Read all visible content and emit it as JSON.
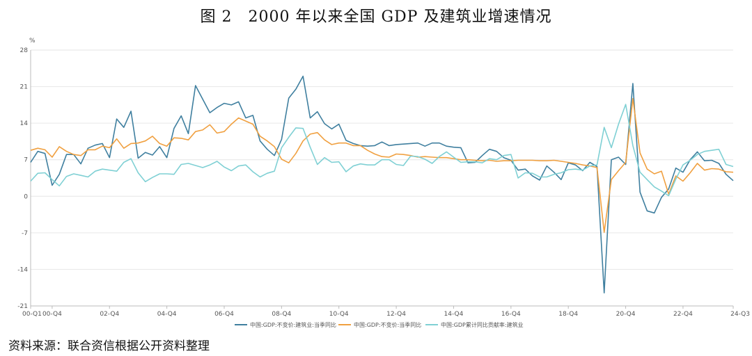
{
  "title": "图 2　2000 年以来全国 GDP 及建筑业增速情况",
  "source": "资料来源：联合资信根据公开资料整理",
  "chart_data": {
    "type": "line",
    "ylabel": "%",
    "ylim": [
      -21,
      28
    ],
    "yticks": [
      "28",
      "21",
      "14",
      "7",
      "0",
      "-7",
      "-14",
      "-21"
    ],
    "ytick_values": [
      28,
      21,
      14,
      7,
      0,
      -7,
      -14,
      -21
    ],
    "x_tick_labels": [
      "00-Q1",
      "00-Q4",
      "02-Q4",
      "04-Q4",
      "06-Q4",
      "08-Q4",
      "10-Q4",
      "12-Q4",
      "14-Q4",
      "16-Q4",
      "18-Q4",
      "20-Q4",
      "22-Q4",
      "24-Q3"
    ],
    "x_tick_indices": [
      0,
      3,
      11,
      19,
      27,
      35,
      43,
      51,
      59,
      67,
      75,
      83,
      91,
      98
    ],
    "grid": true,
    "legend_position": "bottom",
    "series": [
      {
        "name": "中国:GDP:不变价:建筑业:当季同比",
        "color": "#3f7f9f",
        "values": [
          6.5,
          8.6,
          8.2,
          2.1,
          4.2,
          8.0,
          8.0,
          6.2,
          9.2,
          9.8,
          10.1,
          7.4,
          14.8,
          13.2,
          16.3,
          7.3,
          8.4,
          7.9,
          9.5,
          7.4,
          13.0,
          15.4,
          12.0,
          21.2,
          18.6,
          16.0,
          17.0,
          17.8,
          17.5,
          18.1,
          15.0,
          15.5,
          10.6,
          9.0,
          7.8,
          10.9,
          18.8,
          20.5,
          23.0,
          15.0,
          16.2,
          13.9,
          12.9,
          13.8,
          10.7,
          10.1,
          9.7,
          9.6,
          9.7,
          10.4,
          9.7,
          9.9,
          10.0,
          10.1,
          10.2,
          9.6,
          10.2,
          10.2,
          9.6,
          9.4,
          9.3,
          6.4,
          6.5,
          7.8,
          9.0,
          8.6,
          7.4,
          6.9,
          5.0,
          5.2,
          3.9,
          3.1,
          5.8,
          4.6,
          3.2,
          6.4,
          6.0,
          4.9,
          6.5,
          5.7,
          -18.5,
          7.0,
          7.5,
          6.1,
          21.6,
          0.8,
          -2.8,
          -3.2,
          -0.2,
          1.4,
          5.4,
          4.6,
          7.0,
          8.5,
          6.8,
          6.9,
          6.3,
          4.2,
          3.0
        ]
      },
      {
        "name": "中国:GDP:不变价:当季同比",
        "color": "#f0a040",
        "values": [
          8.8,
          9.2,
          8.9,
          7.5,
          9.5,
          8.6,
          8.0,
          7.8,
          8.9,
          8.9,
          9.6,
          9.3,
          11.0,
          9.2,
          10.1,
          10.2,
          10.6,
          11.5,
          10.1,
          9.6,
          11.2,
          11.1,
          10.8,
          12.4,
          12.7,
          13.7,
          12.1,
          12.4,
          13.8,
          15.0,
          14.4,
          13.8,
          11.5,
          10.6,
          9.5,
          7.1,
          6.4,
          8.2,
          10.6,
          11.9,
          12.2,
          10.8,
          9.9,
          10.2,
          10.2,
          9.7,
          9.7,
          8.8,
          8.1,
          7.6,
          7.5,
          8.1,
          8.0,
          7.8,
          7.5,
          7.6,
          7.5,
          7.4,
          7.4,
          7.2,
          7.0,
          7.0,
          6.9,
          6.8,
          6.9,
          6.7,
          6.8,
          6.8,
          6.9,
          6.9,
          6.9,
          6.8,
          6.8,
          6.9,
          6.7,
          6.5,
          6.3,
          6.0,
          5.8,
          5.5,
          -6.9,
          3.2,
          4.9,
          6.5,
          18.7,
          8.3,
          5.2,
          4.3,
          4.8,
          0.4,
          3.9,
          2.9,
          4.5,
          6.3,
          5.0,
          5.3,
          5.2,
          4.7,
          4.6
        ]
      },
      {
        "name": "中国:GDP累计同比贡献率:建筑业",
        "color": "#7fd0d4",
        "values": [
          2.9,
          4.4,
          4.5,
          3.2,
          2.0,
          3.8,
          4.3,
          4.0,
          3.7,
          4.8,
          5.2,
          5.0,
          4.8,
          6.5,
          7.2,
          4.5,
          2.8,
          3.6,
          4.3,
          4.3,
          4.2,
          6.1,
          6.3,
          5.9,
          5.5,
          6.0,
          6.7,
          5.6,
          4.9,
          5.8,
          6.0,
          4.7,
          3.7,
          4.4,
          4.8,
          9.3,
          11.3,
          13.1,
          13.0,
          9.4,
          6.1,
          7.4,
          6.5,
          6.6,
          4.7,
          5.8,
          6.2,
          6.0,
          6.0,
          7.0,
          7.0,
          6.1,
          5.9,
          7.7,
          7.6,
          7.1,
          6.3,
          7.6,
          8.5,
          7.5,
          6.5,
          6.6,
          6.6,
          6.4,
          7.2,
          7.0,
          7.8,
          8.0,
          3.5,
          4.5,
          4.4,
          3.7,
          3.7,
          4.2,
          4.5,
          5.1,
          5.2,
          5.0,
          5.8,
          6.0,
          13.2,
          9.3,
          13.8,
          17.6,
          9.7,
          4.6,
          3.2,
          1.8,
          1.0,
          0.1,
          3.3,
          6.0,
          6.9,
          8.0,
          8.6,
          8.8,
          9.0,
          6.1,
          5.7
        ]
      }
    ]
  }
}
